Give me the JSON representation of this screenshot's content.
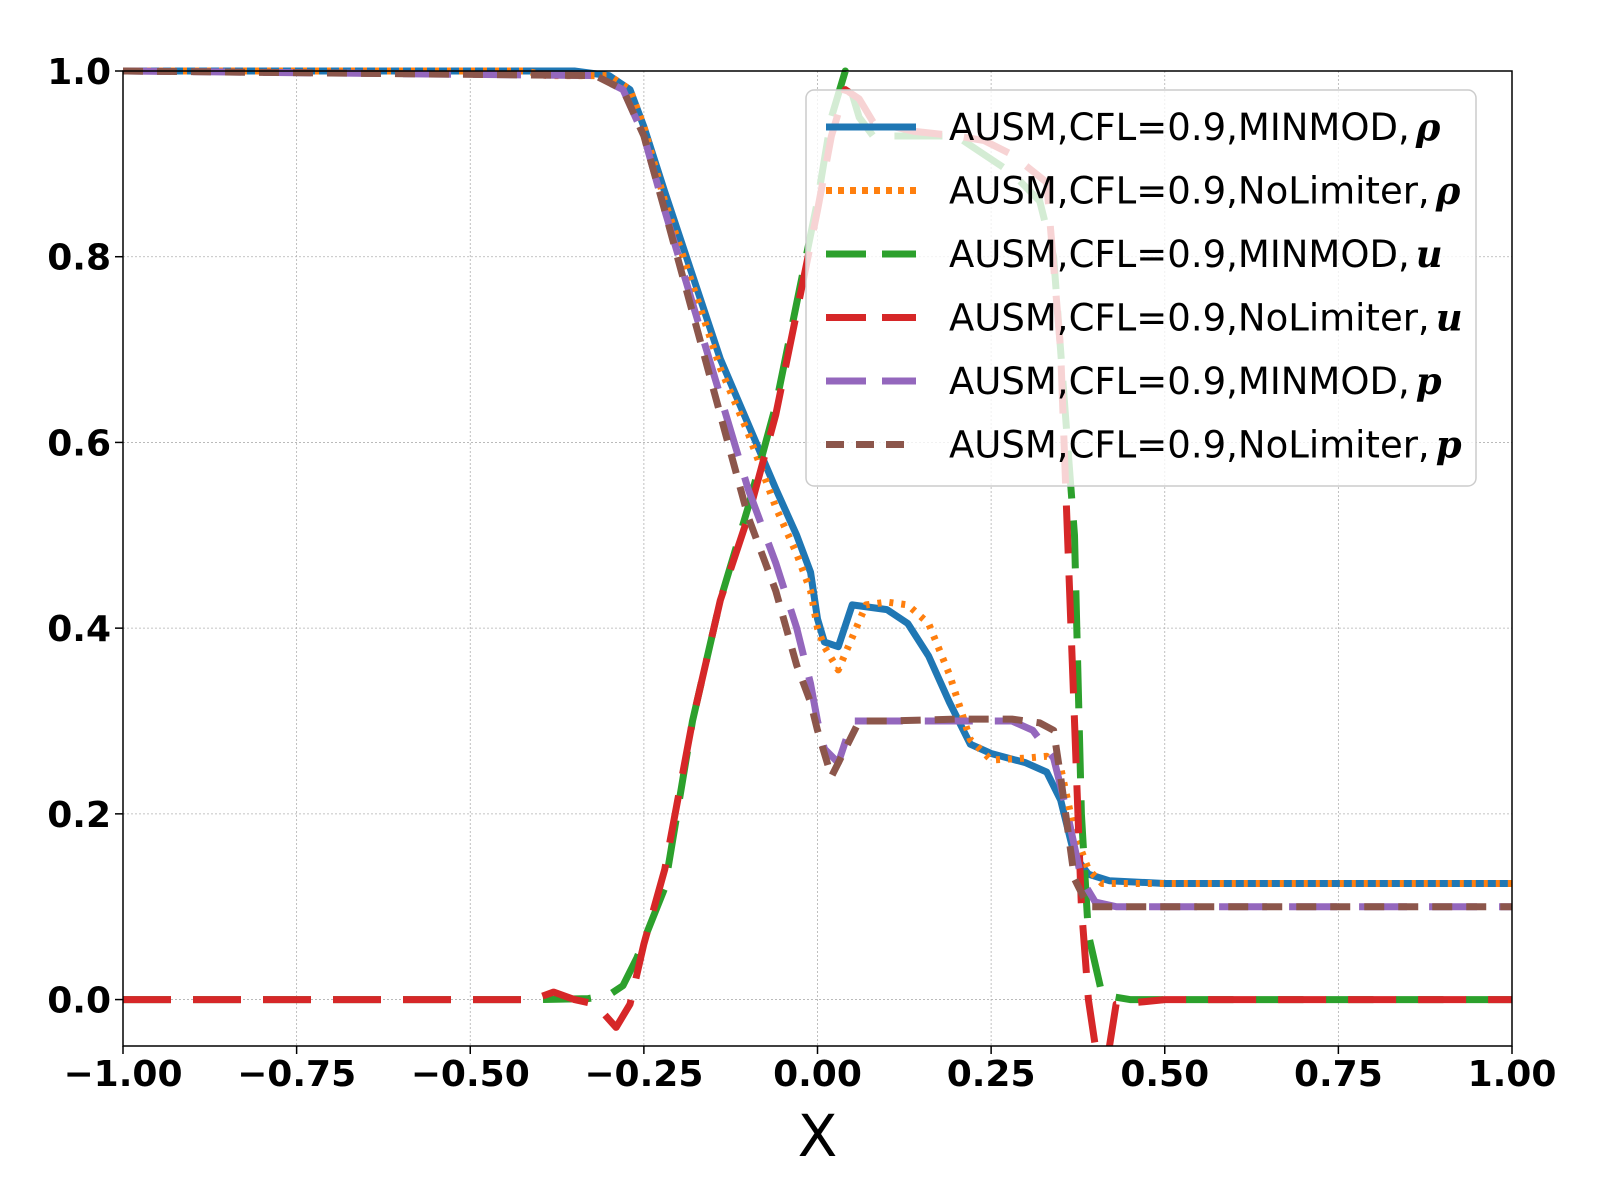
{
  "chart_data": {
    "type": "line",
    "title": "",
    "xlabel": "X",
    "ylabel": "",
    "xlim": [
      -1.0,
      1.0
    ],
    "ylim": [
      -0.05,
      1.0
    ],
    "grid": true,
    "legend_placement": "top-right",
    "x_ticks": [
      -1.0,
      -0.75,
      -0.5,
      -0.25,
      0.0,
      0.25,
      0.5,
      0.75,
      1.0
    ],
    "x_tick_labels": [
      "−1.00",
      "−0.75",
      "−0.50",
      "−0.25",
      "0.00",
      "0.25",
      "0.50",
      "0.75",
      "1.00"
    ],
    "y_ticks": [
      0.0,
      0.2,
      0.4,
      0.6,
      0.8,
      1.0
    ],
    "y_tick_labels": [
      "0.0",
      "0.2",
      "0.4",
      "0.6",
      "0.8",
      "1.0"
    ],
    "series": [
      {
        "name": "AUSM,CFL=0.9,MINMOD,",
        "symbol": "ρ",
        "color": "#1f77b4",
        "style": "solid",
        "points": [
          [
            -1.0,
            1.0
          ],
          [
            -0.35,
            1.0
          ],
          [
            -0.3,
            0.995
          ],
          [
            -0.27,
            0.98
          ],
          [
            -0.25,
            0.94
          ],
          [
            -0.22,
            0.87
          ],
          [
            -0.18,
            0.78
          ],
          [
            -0.14,
            0.69
          ],
          [
            -0.1,
            0.62
          ],
          [
            -0.06,
            0.55
          ],
          [
            -0.03,
            0.5
          ],
          [
            -0.01,
            0.46
          ],
          [
            0.0,
            0.41
          ],
          [
            0.01,
            0.385
          ],
          [
            0.03,
            0.38
          ],
          [
            0.05,
            0.425
          ],
          [
            0.1,
            0.42
          ],
          [
            0.13,
            0.405
          ],
          [
            0.16,
            0.37
          ],
          [
            0.19,
            0.32
          ],
          [
            0.22,
            0.275
          ],
          [
            0.25,
            0.265
          ],
          [
            0.3,
            0.255
          ],
          [
            0.33,
            0.245
          ],
          [
            0.35,
            0.215
          ],
          [
            0.37,
            0.155
          ],
          [
            0.39,
            0.135
          ],
          [
            0.42,
            0.128
          ],
          [
            0.5,
            0.125
          ],
          [
            1.0,
            0.125
          ]
        ]
      },
      {
        "name": "AUSM,CFL=0.9,NoLimiter,",
        "symbol": "ρ",
        "color": "#ff7f0e",
        "style": "dotted",
        "points": [
          [
            -1.0,
            1.0
          ],
          [
            -0.42,
            1.0
          ],
          [
            -0.39,
            0.995
          ],
          [
            -0.36,
            0.995
          ],
          [
            -0.3,
            0.995
          ],
          [
            -0.27,
            0.98
          ],
          [
            -0.25,
            0.94
          ],
          [
            -0.22,
            0.86
          ],
          [
            -0.18,
            0.77
          ],
          [
            -0.14,
            0.68
          ],
          [
            -0.1,
            0.61
          ],
          [
            -0.06,
            0.53
          ],
          [
            -0.03,
            0.48
          ],
          [
            -0.01,
            0.44
          ],
          [
            0.0,
            0.4
          ],
          [
            0.01,
            0.38
          ],
          [
            0.03,
            0.355
          ],
          [
            0.05,
            0.39
          ],
          [
            0.07,
            0.425
          ],
          [
            0.1,
            0.428
          ],
          [
            0.13,
            0.425
          ],
          [
            0.16,
            0.405
          ],
          [
            0.19,
            0.35
          ],
          [
            0.22,
            0.28
          ],
          [
            0.25,
            0.258
          ],
          [
            0.3,
            0.26
          ],
          [
            0.33,
            0.262
          ],
          [
            0.35,
            0.25
          ],
          [
            0.37,
            0.18
          ],
          [
            0.39,
            0.14
          ],
          [
            0.41,
            0.125
          ],
          [
            0.5,
            0.125
          ],
          [
            1.0,
            0.125
          ]
        ]
      },
      {
        "name": "AUSM,CFL=0.9,MINMOD,",
        "symbol": "u",
        "color": "#2ca02c",
        "style": "dashed-long",
        "points": [
          [
            -1.0,
            0.0
          ],
          [
            -0.4,
            0.0
          ],
          [
            -0.33,
            0.001
          ],
          [
            -0.3,
            0.005
          ],
          [
            -0.28,
            0.015
          ],
          [
            -0.26,
            0.045
          ],
          [
            -0.22,
            0.12
          ],
          [
            -0.18,
            0.3
          ],
          [
            -0.14,
            0.43
          ],
          [
            -0.1,
            0.53
          ],
          [
            -0.06,
            0.64
          ],
          [
            -0.03,
            0.75
          ],
          [
            0.0,
            0.86
          ],
          [
            0.02,
            0.95
          ],
          [
            0.04,
            1.0
          ],
          [
            0.06,
            0.95
          ],
          [
            0.08,
            0.93
          ],
          [
            0.15,
            0.93
          ],
          [
            0.2,
            0.93
          ],
          [
            0.24,
            0.91
          ],
          [
            0.28,
            0.89
          ],
          [
            0.32,
            0.86
          ],
          [
            0.34,
            0.8
          ],
          [
            0.36,
            0.6
          ],
          [
            0.37,
            0.5
          ],
          [
            0.38,
            0.2
          ],
          [
            0.39,
            0.07
          ],
          [
            0.41,
            0.005
          ],
          [
            0.45,
            0.0
          ],
          [
            1.0,
            0.0
          ]
        ]
      },
      {
        "name": "AUSM,CFL=0.9,NoLimiter,",
        "symbol": "u",
        "color": "#d62728",
        "style": "dashed-long",
        "points": [
          [
            -1.0,
            0.0
          ],
          [
            -0.41,
            0.0
          ],
          [
            -0.38,
            0.008
          ],
          [
            -0.35,
            0.0
          ],
          [
            -0.32,
            -0.005
          ],
          [
            -0.29,
            -0.03
          ],
          [
            -0.27,
            -0.005
          ],
          [
            -0.25,
            0.06
          ],
          [
            -0.22,
            0.14
          ],
          [
            -0.18,
            0.3
          ],
          [
            -0.14,
            0.43
          ],
          [
            -0.1,
            0.52
          ],
          [
            -0.06,
            0.63
          ],
          [
            -0.03,
            0.74
          ],
          [
            0.0,
            0.85
          ],
          [
            0.02,
            0.93
          ],
          [
            0.04,
            0.98
          ],
          [
            0.06,
            0.97
          ],
          [
            0.08,
            0.945
          ],
          [
            0.14,
            0.935
          ],
          [
            0.2,
            0.93
          ],
          [
            0.24,
            0.925
          ],
          [
            0.28,
            0.91
          ],
          [
            0.33,
            0.88
          ],
          [
            0.35,
            0.7
          ],
          [
            0.36,
            0.5
          ],
          [
            0.37,
            0.3
          ],
          [
            0.38,
            0.1
          ],
          [
            0.39,
            0.0
          ],
          [
            0.41,
            -0.1
          ],
          [
            0.43,
            -0.005
          ],
          [
            0.46,
            -0.003
          ],
          [
            0.5,
            0.0
          ],
          [
            1.0,
            0.0
          ]
        ]
      },
      {
        "name": "AUSM,CFL=0.9,MINMOD,",
        "symbol": "p",
        "color": "#9467bd",
        "style": "dashed-long",
        "points": [
          [
            -1.0,
            1.0
          ],
          [
            -0.32,
            0.995
          ],
          [
            -0.28,
            0.98
          ],
          [
            -0.25,
            0.93
          ],
          [
            -0.22,
            0.85
          ],
          [
            -0.18,
            0.75
          ],
          [
            -0.14,
            0.65
          ],
          [
            -0.1,
            0.55
          ],
          [
            -0.06,
            0.47
          ],
          [
            -0.03,
            0.4
          ],
          [
            -0.01,
            0.34
          ],
          [
            0.0,
            0.3
          ],
          [
            0.01,
            0.27
          ],
          [
            0.03,
            0.255
          ],
          [
            0.05,
            0.3
          ],
          [
            0.1,
            0.3
          ],
          [
            0.2,
            0.3
          ],
          [
            0.28,
            0.3
          ],
          [
            0.31,
            0.29
          ],
          [
            0.34,
            0.26
          ],
          [
            0.36,
            0.2
          ],
          [
            0.38,
            0.13
          ],
          [
            0.4,
            0.105
          ],
          [
            0.43,
            0.1
          ],
          [
            1.0,
            0.1
          ]
        ]
      },
      {
        "name": "AUSM,CFL=0.9,NoLimiter,",
        "symbol": "p",
        "color": "#8c564b",
        "style": "dashed-short",
        "points": [
          [
            -1.0,
            1.0
          ],
          [
            -0.32,
            0.995
          ],
          [
            -0.28,
            0.98
          ],
          [
            -0.25,
            0.93
          ],
          [
            -0.22,
            0.85
          ],
          [
            -0.18,
            0.74
          ],
          [
            -0.14,
            0.63
          ],
          [
            -0.1,
            0.52
          ],
          [
            -0.06,
            0.44
          ],
          [
            -0.03,
            0.36
          ],
          [
            -0.01,
            0.32
          ],
          [
            0.0,
            0.29
          ],
          [
            0.02,
            0.24
          ],
          [
            0.04,
            0.27
          ],
          [
            0.06,
            0.3
          ],
          [
            0.1,
            0.3
          ],
          [
            0.2,
            0.302
          ],
          [
            0.28,
            0.302
          ],
          [
            0.32,
            0.298
          ],
          [
            0.34,
            0.29
          ],
          [
            0.35,
            0.24
          ],
          [
            0.37,
            0.13
          ],
          [
            0.39,
            0.1
          ],
          [
            0.41,
            0.1
          ],
          [
            1.0,
            0.1
          ]
        ]
      }
    ]
  }
}
